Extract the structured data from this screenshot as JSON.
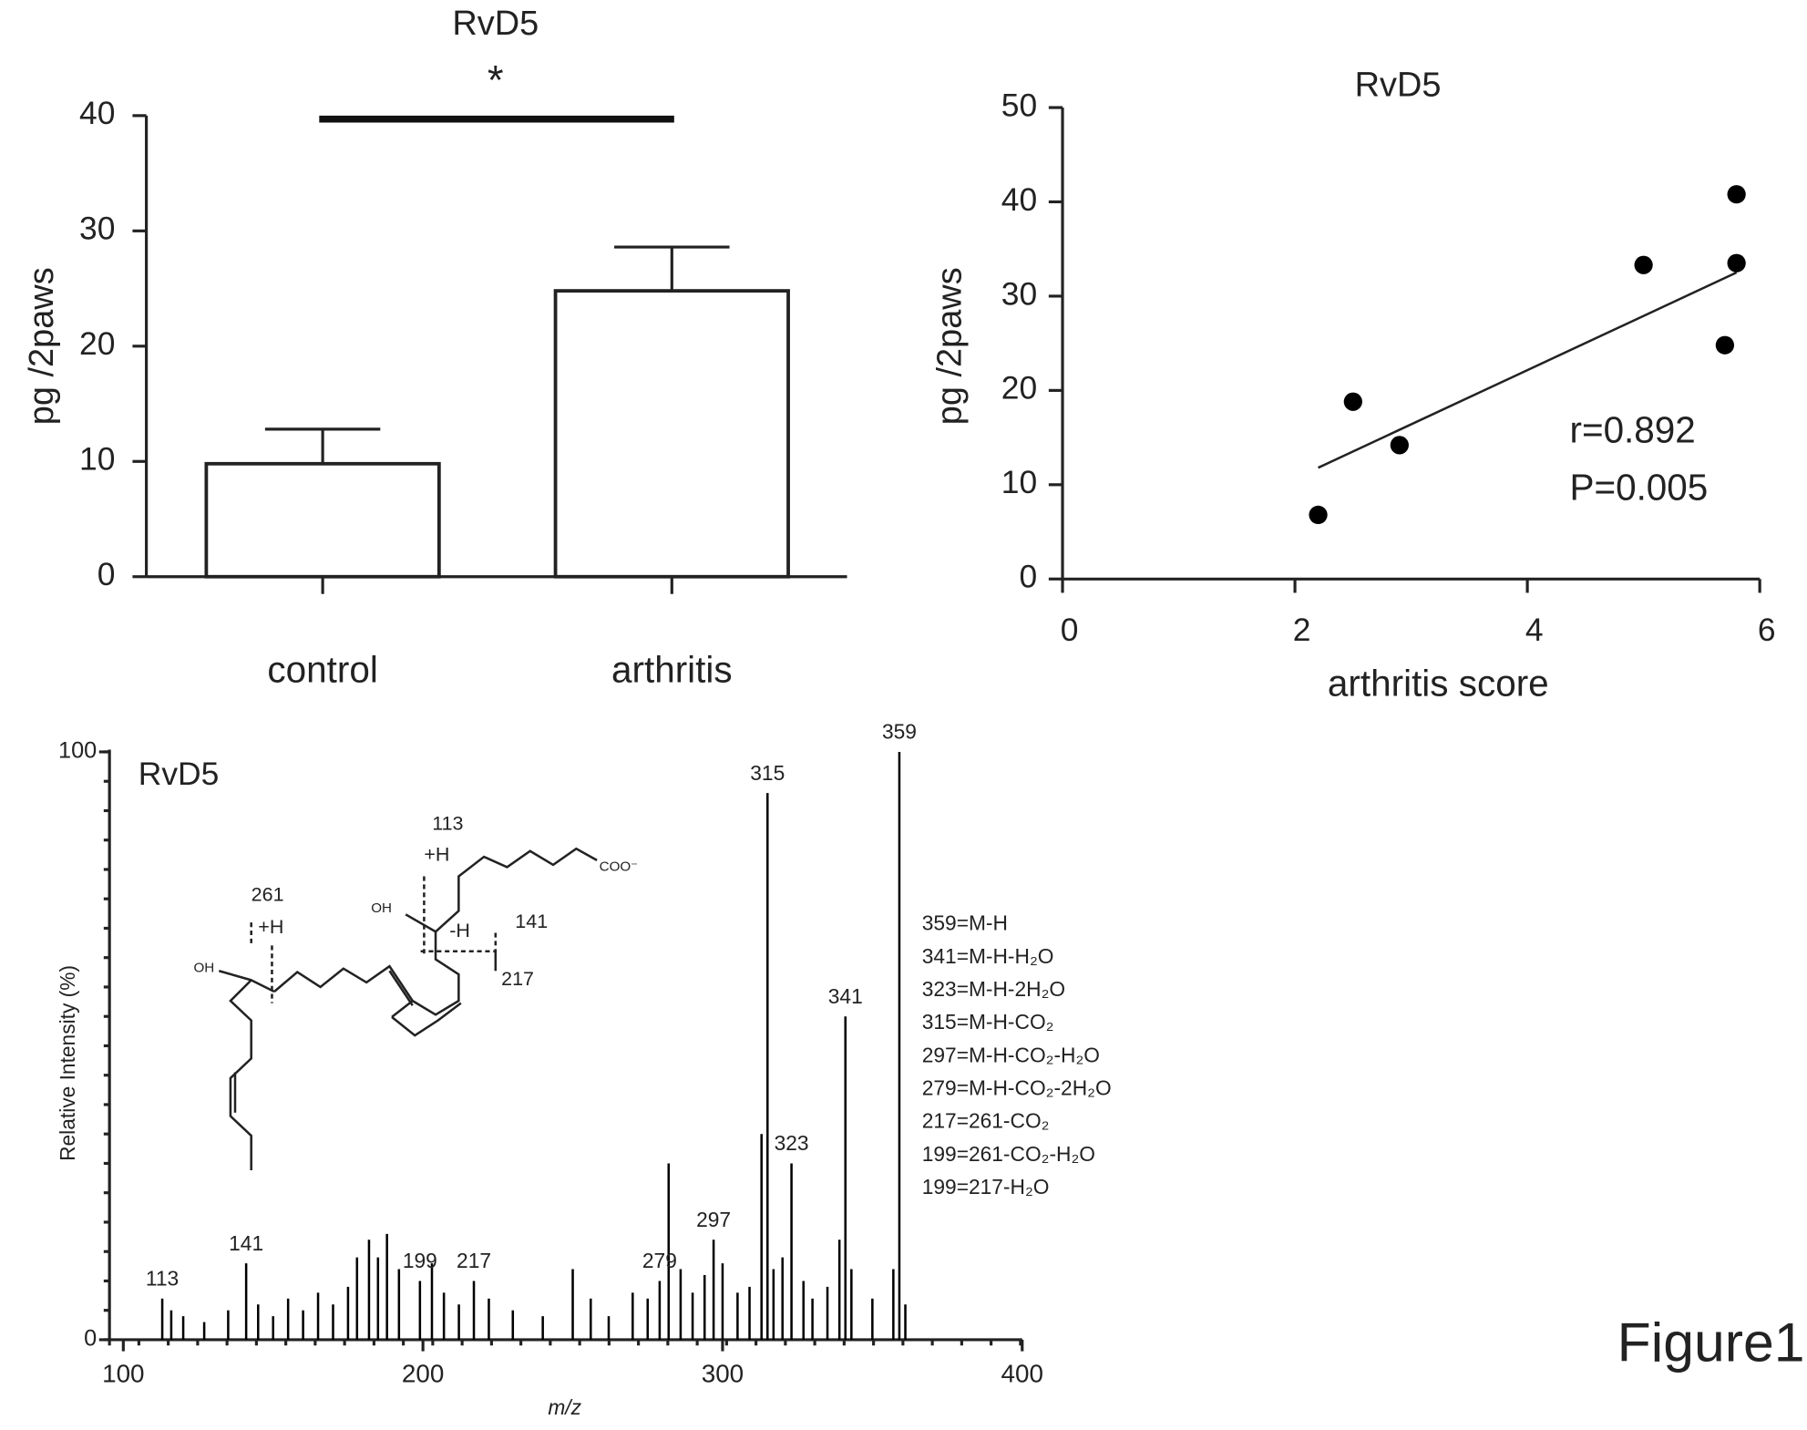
{
  "chart_data": [
    {
      "type": "bar",
      "title": "RvD5",
      "annotation": "*",
      "ylabel": "pg /2paws",
      "categories": [
        "control",
        "arthritis"
      ],
      "values": [
        9.8,
        24.8
      ],
      "errors": [
        3.0,
        3.8
      ],
      "ylim": [
        0,
        40
      ],
      "yticks": [
        0,
        10,
        20,
        30,
        40
      ],
      "color": "#ffffff"
    },
    {
      "type": "scatter",
      "title": "RvD5",
      "xlabel": "arthritis score",
      "ylabel": "pg /2paws",
      "x": [
        2.2,
        2.5,
        2.9,
        5.0,
        5.7,
        5.8,
        5.8
      ],
      "values": [
        6.8,
        18.8,
        14.2,
        33.3,
        24.8,
        40.8,
        33.5
      ],
      "fit": {
        "x": [
          2.2,
          5.8
        ],
        "y": [
          11.8,
          32.5
        ]
      },
      "annotations": [
        "r=0.892",
        "P=0.005"
      ],
      "xlim": [
        0,
        6
      ],
      "xticks": [
        0,
        2,
        4,
        6
      ],
      "ylim": [
        0,
        50
      ],
      "yticks": [
        0,
        10,
        20,
        30,
        40,
        50
      ],
      "color": "#000000"
    },
    {
      "type": "spectrum",
      "title": "RvD5",
      "xlabel": "m/z",
      "ylabel": "Relative  Intensity (%)",
      "x": [
        113,
        116,
        120,
        127,
        135,
        141,
        145,
        150,
        155,
        160,
        165,
        170,
        175,
        178,
        182,
        185,
        188,
        192,
        199,
        203,
        207,
        212,
        217,
        222,
        230,
        240,
        250,
        256,
        262,
        270,
        275,
        279,
        282,
        286,
        290,
        294,
        297,
        300,
        305,
        309,
        313,
        315,
        317,
        320,
        323,
        327,
        330,
        335,
        339,
        341,
        343,
        350,
        357,
        359,
        361
      ],
      "values": [
        7,
        5,
        4,
        3,
        5,
        13,
        6,
        4,
        7,
        5,
        8,
        6,
        9,
        14,
        17,
        14,
        18,
        12,
        10,
        13,
        8,
        6,
        10,
        7,
        5,
        4,
        12,
        7,
        4,
        8,
        7,
        10,
        30,
        12,
        8,
        11,
        17,
        13,
        8,
        9,
        35,
        93,
        12,
        14,
        30,
        10,
        7,
        9,
        17,
        55,
        12,
        7,
        12,
        100,
        6
      ],
      "peak_labels": [
        "113",
        "141",
        "199",
        "217",
        "279",
        "297",
        "315",
        "323",
        "341",
        "359"
      ],
      "xlim": [
        100,
        400
      ],
      "xticks": [
        100,
        200,
        300,
        400
      ],
      "ylim": [
        0,
        100
      ],
      "yticks": [
        0,
        100
      ],
      "color": "#000000",
      "structure_labels": [
        "113",
        "+H",
        "261",
        "+H",
        "OH",
        "-H",
        "141",
        "OH",
        "217",
        "COO⁻"
      ],
      "fragments": [
        "359=M-H",
        "341=M-H-H₂O",
        "323=M-H-2H₂O",
        "315=M-H-CO₂",
        "297=M-H-CO₂-H₂O",
        "279=M-H-CO₂-2H₂O",
        "217=261-CO₂",
        "199=261-CO₂-H₂O",
        "199=217-H₂O"
      ]
    }
  ],
  "figure_label": "Figure1"
}
